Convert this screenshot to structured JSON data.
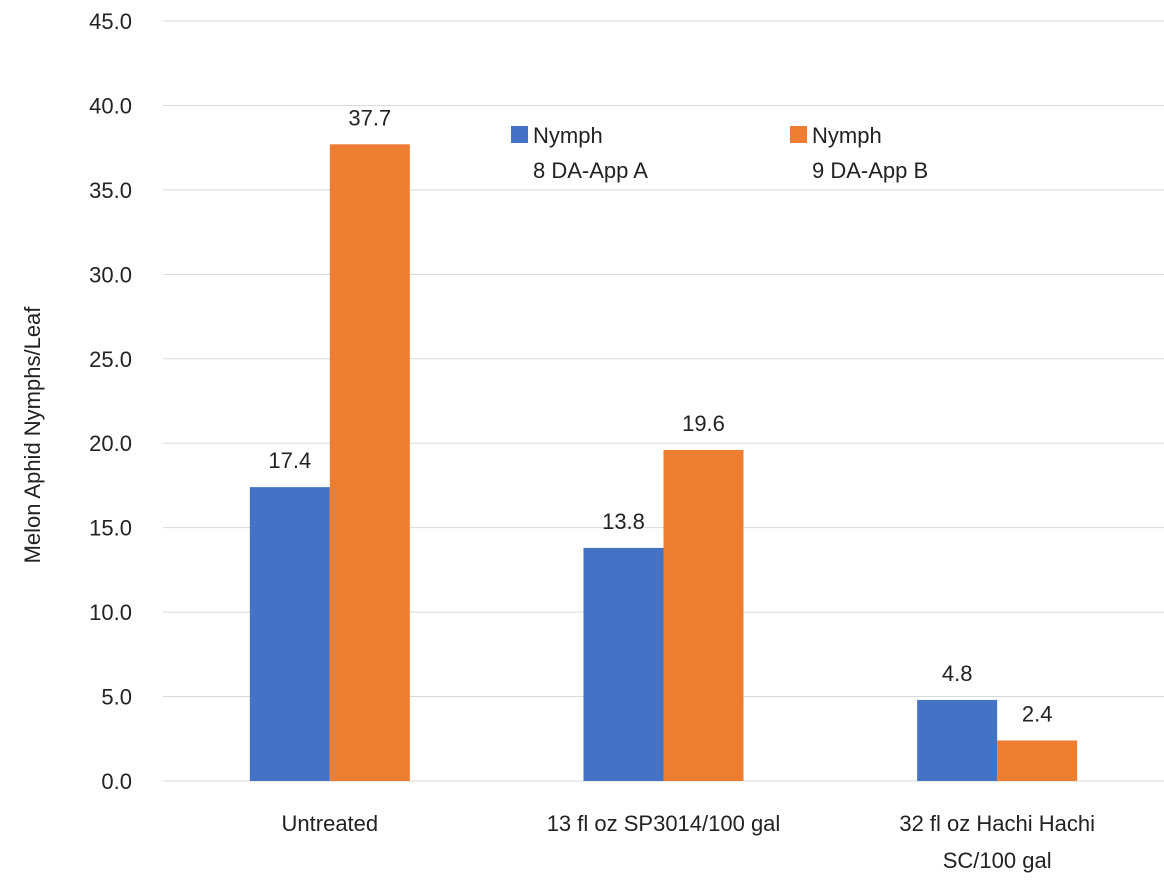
{
  "chart_data": {
    "type": "bar",
    "title": "",
    "xlabel": "",
    "ylabel": "Melon Aphid Nymphs/Leaf",
    "ylim": [
      0,
      45
    ],
    "ytick_step": 5,
    "ytick_format_decimals": 1,
    "grid": true,
    "legend_position": "top-right",
    "categories": [
      [
        "Untreated"
      ],
      [
        "13 fl oz SP3014/100 gal"
      ],
      [
        "32 fl oz Hachi Hachi",
        "SC/100 gal"
      ]
    ],
    "series": [
      {
        "name": [
          "Nymph",
          "8 DA-App A"
        ],
        "color": "#4472c4",
        "values": [
          17.4,
          13.8,
          4.8
        ]
      },
      {
        "name": [
          "Nymph",
          "9 DA-App B"
        ],
        "color": "#ed7d31",
        "values": [
          37.7,
          19.6,
          2.4
        ]
      }
    ]
  }
}
